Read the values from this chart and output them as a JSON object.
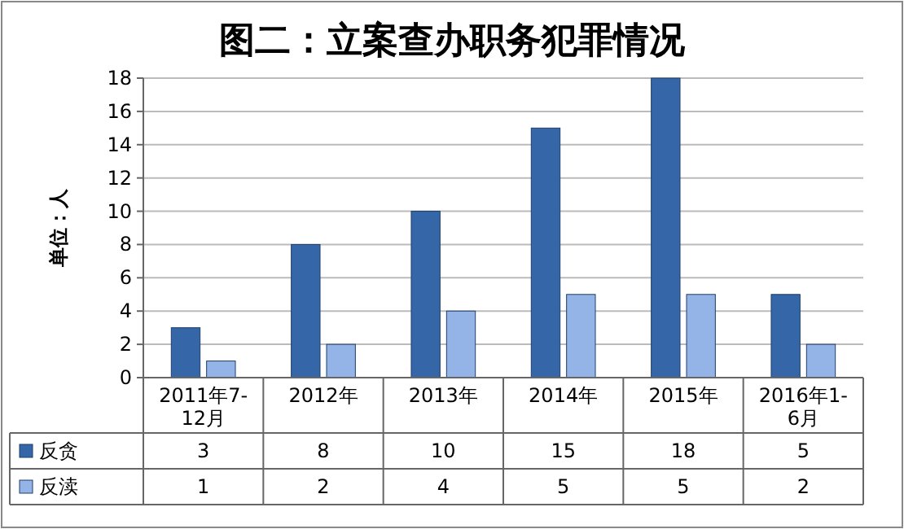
{
  "chart_data": {
    "type": "bar",
    "title": "图二：立案查办职务犯罪情况",
    "ylabel": "单位：人",
    "categories": [
      "2011年7-12月",
      "2012年",
      "2013年",
      "2014年",
      "2015年",
      "2016年1-6月"
    ],
    "series": [
      {
        "name": "反贪",
        "color": "#3466a8",
        "values": [
          3,
          8,
          10,
          15,
          18,
          5
        ]
      },
      {
        "name": "反渎",
        "color": "#94b3e6",
        "values": [
          1,
          2,
          4,
          5,
          5,
          2
        ]
      }
    ],
    "ylim": [
      0,
      18
    ],
    "yticks": [
      0,
      2,
      4,
      6,
      8,
      10,
      12,
      14,
      16,
      18
    ],
    "grid": "y",
    "data_labels": true,
    "legend": "bottom"
  }
}
